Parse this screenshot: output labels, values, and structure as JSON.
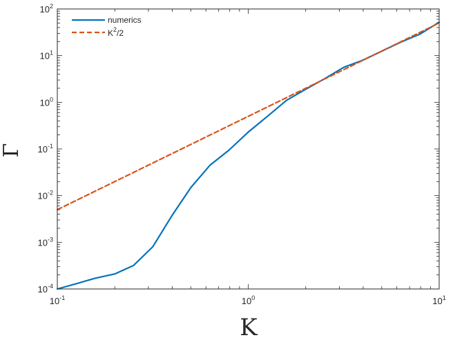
{
  "chart_data": {
    "type": "line",
    "xscale": "log",
    "yscale": "log",
    "xlim": [
      0.1,
      10
    ],
    "ylim": [
      0.0001,
      100
    ],
    "xlabel": "K",
    "ylabel": "Γ",
    "grid": false,
    "legend_position": "top-left",
    "x_ticks": [
      {
        "base": "10",
        "exp": "-1",
        "value": 0.1
      },
      {
        "base": "10",
        "exp": "0",
        "value": 1
      },
      {
        "base": "10",
        "exp": "1",
        "value": 10
      }
    ],
    "y_ticks": [
      {
        "base": "10",
        "exp": "-4",
        "value": 0.0001
      },
      {
        "base": "10",
        "exp": "-3",
        "value": 0.001
      },
      {
        "base": "10",
        "exp": "-2",
        "value": 0.01
      },
      {
        "base": "10",
        "exp": "-1",
        "value": 0.1
      },
      {
        "base": "10",
        "exp": "0",
        "value": 1
      },
      {
        "base": "10",
        "exp": "1",
        "value": 10
      },
      {
        "base": "10",
        "exp": "2",
        "value": 100
      }
    ],
    "series": [
      {
        "name": "numerics",
        "color": "#0072BD",
        "dash": "solid",
        "x": [
          0.1,
          0.126,
          0.158,
          0.2,
          0.251,
          0.316,
          0.398,
          0.501,
          0.631,
          0.794,
          1.0,
          1.26,
          1.585,
          2.0,
          2.51,
          3.16,
          3.98,
          5.01,
          6.31,
          7.94,
          10.0
        ],
        "y": [
          0.0001,
          0.00013,
          0.00017,
          0.00021,
          0.00032,
          0.0008,
          0.0037,
          0.015,
          0.045,
          0.095,
          0.23,
          0.5,
          1.1,
          1.9,
          3.2,
          5.6,
          8.0,
          12.5,
          19.5,
          29.0,
          52.0
        ]
      },
      {
        "name": "K",
        "name_sup": "2",
        "name_rest": "/2",
        "color": "#D95319",
        "dash": "dashed",
        "x": [
          0.1,
          0.2,
          0.5,
          1.0,
          2.0,
          5.0,
          10.0
        ],
        "y": [
          0.005,
          0.02,
          0.125,
          0.5,
          2.0,
          12.5,
          50.0
        ]
      }
    ]
  }
}
